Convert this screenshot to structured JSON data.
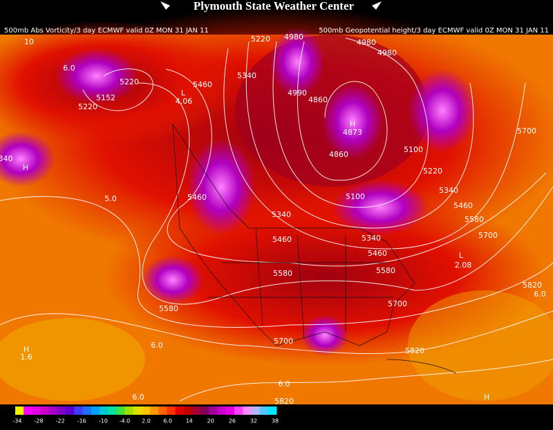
{
  "header": {
    "title": "Plymouth State Weather Center",
    "left_caption": "500mb Abs Vorticity/3 day ECMWF valid 0Z MON 31 JAN 11",
    "right_caption": "500mb Geopotential height/3 day ECMWF valid 0Z MON 31 JAN 11"
  },
  "map": {
    "contour_labels": [
      "5220",
      "4980",
      "4980",
      "4980",
      "10",
      "6.0",
      "5220",
      "5460",
      "5340",
      "4.06",
      "5152",
      "5220",
      "4990",
      "4860",
      "4873",
      "4860",
      "5100",
      "5220",
      "5700",
      "5340",
      "5100",
      "5460",
      "5340",
      "5460",
      "5580",
      "5700",
      "5460",
      "5340",
      "5460",
      "5580",
      "5580",
      "2.08",
      "5820",
      "6.0",
      "5700",
      "5580",
      "5700",
      "5820",
      "H",
      "1.6",
      "6.0",
      "6.0",
      "5820",
      "6.0",
      "H",
      "H",
      "340",
      "5.0",
      "L",
      "L",
      "H"
    ]
  },
  "colorbar": {
    "colors": [
      "#f0f000",
      "#ff00ff",
      "#e400e4",
      "#c800c8",
      "#a400c8",
      "#8000c8",
      "#5a00d0",
      "#3c3cff",
      "#1e6eff",
      "#00a0ff",
      "#00c8d2",
      "#00e0a0",
      "#40e040",
      "#a0e000",
      "#e0e000",
      "#ffc800",
      "#ff9600",
      "#ff6400",
      "#ff3200",
      "#e10000",
      "#c00000",
      "#a00032",
      "#82005a",
      "#a000a0",
      "#c800c8",
      "#e600e6",
      "#ff40ff",
      "#ff8cff",
      "#b4b4ff",
      "#50c8ff",
      "#00e6ff"
    ],
    "labels": [
      "-34",
      "-28",
      "-22",
      "-16",
      "-10",
      "-4.0",
      "2.0",
      "6.0",
      "14",
      "20",
      "26",
      "32",
      "38"
    ]
  }
}
